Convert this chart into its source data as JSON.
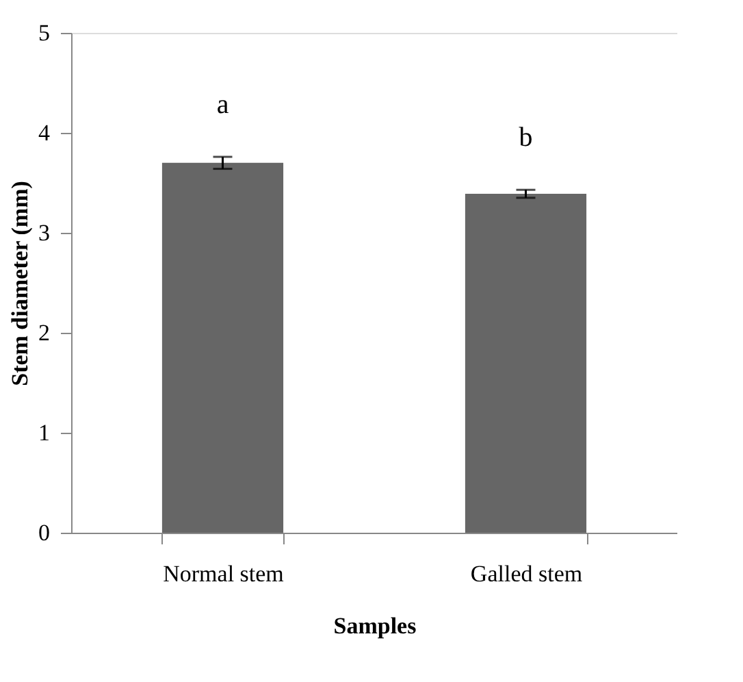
{
  "chart_data": {
    "type": "bar",
    "xlabel": "Samples",
    "ylabel": "Stem diameter (mm)",
    "categories": [
      "Normal stem",
      "Galled stem"
    ],
    "values": [
      3.7,
      3.39
    ],
    "errors": [
      0.06,
      0.04
    ],
    "color": "#666666",
    "ylim": [
      0,
      5
    ],
    "yticks": [
      0,
      1,
      2,
      3,
      4,
      5
    ],
    "grid": false,
    "annotations": [
      "a",
      "b"
    ]
  }
}
